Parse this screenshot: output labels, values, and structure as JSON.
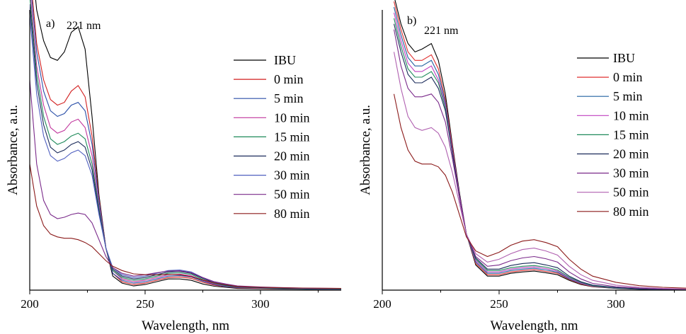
{
  "chart_data": [
    {
      "type": "line",
      "panel_label": "a)",
      "annotation": "221 nm",
      "annotation_x": 221,
      "xlabel": "Wavelength, nm",
      "ylabel": "Absorbance, a.u.",
      "xlim": [
        200,
        335
      ],
      "ylim": [
        0,
        1.0
      ],
      "xticks": [
        200,
        250,
        300
      ],
      "legend_position": "top-right",
      "x": [
        200,
        203,
        206,
        209,
        212,
        215,
        218,
        221,
        224,
        227,
        230,
        233,
        236,
        240,
        245,
        250,
        255,
        260,
        265,
        270,
        275,
        280,
        285,
        290,
        300,
        310,
        320,
        335
      ],
      "series": [
        {
          "name": "IBU",
          "color": "#000000",
          "values": [
            1.25,
            1.0,
            0.89,
            0.83,
            0.82,
            0.85,
            0.92,
            0.94,
            0.86,
            0.62,
            0.34,
            0.15,
            0.05,
            0.025,
            0.015,
            0.02,
            0.03,
            0.04,
            0.04,
            0.035,
            0.022,
            0.014,
            0.01,
            0.006,
            0.005,
            0.004,
            0.003,
            0.003
          ]
        },
        {
          "name": "0 min",
          "color": "#d21f1f",
          "values": [
            1.15,
            0.88,
            0.75,
            0.68,
            0.66,
            0.67,
            0.71,
            0.73,
            0.69,
            0.55,
            0.33,
            0.15,
            0.06,
            0.03,
            0.02,
            0.025,
            0.035,
            0.045,
            0.047,
            0.042,
            0.028,
            0.018,
            0.012,
            0.008,
            0.006,
            0.005,
            0.004,
            0.003
          ]
        },
        {
          "name": "5 min",
          "color": "#2a4fa8",
          "values": [
            1.12,
            0.85,
            0.71,
            0.64,
            0.62,
            0.63,
            0.66,
            0.67,
            0.64,
            0.52,
            0.32,
            0.15,
            0.06,
            0.035,
            0.025,
            0.03,
            0.04,
            0.05,
            0.052,
            0.047,
            0.032,
            0.02,
            0.013,
            0.009,
            0.007,
            0.005,
            0.004,
            0.003
          ]
        },
        {
          "name": "10 min",
          "color": "#c0359c",
          "values": [
            1.08,
            0.8,
            0.66,
            0.58,
            0.56,
            0.57,
            0.6,
            0.61,
            0.58,
            0.48,
            0.3,
            0.15,
            0.07,
            0.04,
            0.03,
            0.035,
            0.045,
            0.055,
            0.057,
            0.051,
            0.035,
            0.022,
            0.015,
            0.01,
            0.007,
            0.006,
            0.005,
            0.004
          ]
        },
        {
          "name": "15 min",
          "color": "#1f8a5a",
          "values": [
            1.05,
            0.77,
            0.62,
            0.54,
            0.52,
            0.53,
            0.55,
            0.56,
            0.54,
            0.45,
            0.29,
            0.15,
            0.07,
            0.045,
            0.035,
            0.04,
            0.05,
            0.06,
            0.062,
            0.056,
            0.038,
            0.024,
            0.016,
            0.011,
            0.008,
            0.006,
            0.005,
            0.004
          ]
        },
        {
          "name": "20 min",
          "color": "#1a2a5a",
          "values": [
            1.02,
            0.74,
            0.59,
            0.51,
            0.49,
            0.5,
            0.52,
            0.53,
            0.51,
            0.43,
            0.28,
            0.15,
            0.075,
            0.05,
            0.04,
            0.045,
            0.055,
            0.065,
            0.067,
            0.06,
            0.042,
            0.026,
            0.018,
            0.012,
            0.009,
            0.007,
            0.006,
            0.005
          ]
        },
        {
          "name": "30 min",
          "color": "#5060c0",
          "values": [
            0.98,
            0.7,
            0.55,
            0.48,
            0.46,
            0.47,
            0.49,
            0.5,
            0.48,
            0.41,
            0.27,
            0.15,
            0.08,
            0.055,
            0.045,
            0.05,
            0.06,
            0.07,
            0.072,
            0.065,
            0.045,
            0.028,
            0.02,
            0.013,
            0.01,
            0.008,
            0.006,
            0.005
          ]
        },
        {
          "name": "50 min",
          "color": "#7a2a8a",
          "values": [
            0.75,
            0.45,
            0.32,
            0.27,
            0.255,
            0.26,
            0.27,
            0.275,
            0.27,
            0.24,
            0.18,
            0.12,
            0.08,
            0.06,
            0.05,
            0.055,
            0.062,
            0.068,
            0.069,
            0.062,
            0.045,
            0.03,
            0.022,
            0.015,
            0.011,
            0.009,
            0.007,
            0.006
          ]
        },
        {
          "name": "80 min",
          "color": "#8b1a1a",
          "values": [
            0.45,
            0.3,
            0.23,
            0.2,
            0.19,
            0.185,
            0.185,
            0.18,
            0.17,
            0.155,
            0.13,
            0.105,
            0.085,
            0.07,
            0.058,
            0.055,
            0.055,
            0.056,
            0.055,
            0.048,
            0.036,
            0.026,
            0.019,
            0.013,
            0.01,
            0.008,
            0.007,
            0.006
          ]
        }
      ]
    },
    {
      "type": "line",
      "panel_label": "b)",
      "annotation": "221 nm",
      "annotation_x": 221,
      "xlabel": "Wavelength, nm",
      "ylabel": "Absorbance, a.u.",
      "xlim": [
        200,
        330
      ],
      "ylim": [
        0,
        1.0
      ],
      "xticks": [
        200,
        250,
        300
      ],
      "legend_position": "top-right",
      "x": [
        205,
        208,
        211,
        214,
        217,
        221,
        224,
        227,
        230,
        233,
        236,
        240,
        245,
        250,
        255,
        260,
        265,
        270,
        275,
        280,
        285,
        290,
        300,
        310,
        320,
        330
      ],
      "series": [
        {
          "name": "IBU",
          "color": "#000000",
          "values": [
            1.05,
            0.95,
            0.88,
            0.85,
            0.86,
            0.88,
            0.82,
            0.7,
            0.52,
            0.35,
            0.2,
            0.09,
            0.05,
            0.05,
            0.06,
            0.065,
            0.068,
            0.062,
            0.055,
            0.035,
            0.02,
            0.012,
            0.006,
            0.003,
            0.002,
            0.002
          ]
        },
        {
          "name": "0 min",
          "color": "#e03030",
          "values": [
            1.03,
            0.93,
            0.85,
            0.82,
            0.82,
            0.84,
            0.79,
            0.68,
            0.51,
            0.34,
            0.2,
            0.095,
            0.055,
            0.055,
            0.065,
            0.07,
            0.073,
            0.067,
            0.06,
            0.038,
            0.022,
            0.013,
            0.007,
            0.004,
            0.002,
            0.002
          ]
        },
        {
          "name": "5 min",
          "color": "#2060a0",
          "values": [
            1.01,
            0.91,
            0.83,
            0.8,
            0.8,
            0.82,
            0.77,
            0.67,
            0.5,
            0.34,
            0.2,
            0.1,
            0.06,
            0.06,
            0.07,
            0.075,
            0.078,
            0.072,
            0.064,
            0.04,
            0.024,
            0.014,
            0.007,
            0.004,
            0.002,
            0.002
          ]
        },
        {
          "name": "10 min",
          "color": "#c040c0",
          "values": [
            0.99,
            0.89,
            0.81,
            0.78,
            0.78,
            0.8,
            0.75,
            0.66,
            0.5,
            0.34,
            0.2,
            0.105,
            0.065,
            0.065,
            0.075,
            0.08,
            0.083,
            0.077,
            0.068,
            0.043,
            0.026,
            0.015,
            0.008,
            0.005,
            0.003,
            0.002
          ]
        },
        {
          "name": "15 min",
          "color": "#1f8a5a",
          "values": [
            0.97,
            0.87,
            0.79,
            0.76,
            0.76,
            0.78,
            0.74,
            0.65,
            0.49,
            0.33,
            0.2,
            0.11,
            0.07,
            0.07,
            0.08,
            0.085,
            0.088,
            0.082,
            0.072,
            0.046,
            0.028,
            0.016,
            0.008,
            0.005,
            0.003,
            0.002
          ]
        },
        {
          "name": "20 min",
          "color": "#1a2a5a",
          "values": [
            0.95,
            0.85,
            0.77,
            0.74,
            0.74,
            0.76,
            0.72,
            0.64,
            0.49,
            0.33,
            0.2,
            0.115,
            0.075,
            0.075,
            0.088,
            0.095,
            0.098,
            0.09,
            0.08,
            0.05,
            0.03,
            0.018,
            0.009,
            0.005,
            0.003,
            0.002
          ]
        },
        {
          "name": "30 min",
          "color": "#7a2a8a",
          "values": [
            0.93,
            0.8,
            0.72,
            0.69,
            0.69,
            0.7,
            0.67,
            0.6,
            0.47,
            0.33,
            0.2,
            0.12,
            0.085,
            0.09,
            0.105,
            0.115,
            0.12,
            0.112,
            0.1,
            0.065,
            0.04,
            0.024,
            0.012,
            0.007,
            0.004,
            0.003
          ]
        },
        {
          "name": "50 min",
          "color": "#b060b0",
          "values": [
            0.85,
            0.72,
            0.62,
            0.58,
            0.57,
            0.58,
            0.56,
            0.51,
            0.42,
            0.31,
            0.2,
            0.13,
            0.1,
            0.11,
            0.13,
            0.145,
            0.15,
            0.14,
            0.125,
            0.085,
            0.055,
            0.035,
            0.018,
            0.01,
            0.006,
            0.004
          ]
        },
        {
          "name": "80 min",
          "color": "#8b1a1a",
          "values": [
            0.7,
            0.58,
            0.5,
            0.46,
            0.45,
            0.45,
            0.44,
            0.41,
            0.35,
            0.27,
            0.19,
            0.14,
            0.12,
            0.135,
            0.16,
            0.175,
            0.18,
            0.17,
            0.155,
            0.11,
            0.075,
            0.05,
            0.028,
            0.016,
            0.01,
            0.007
          ]
        }
      ]
    }
  ]
}
